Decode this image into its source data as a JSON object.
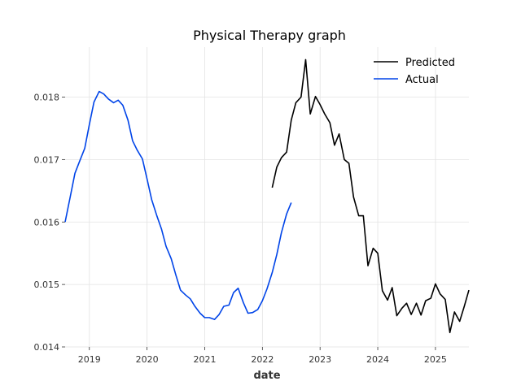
{
  "chart_data": {
    "type": "line",
    "title": "Physical Therapy graph",
    "xlabel": "date",
    "ylabel": "",
    "xlim": [
      2018.58,
      2025.58
    ],
    "ylim": [
      0.014,
      0.0188
    ],
    "x_ticks": [
      2019,
      2020,
      2021,
      2022,
      2023,
      2024,
      2025
    ],
    "x_tick_labels": [
      "2019",
      "2020",
      "2021",
      "2022",
      "2023",
      "2024",
      "2025"
    ],
    "y_ticks": [
      0.014,
      0.015,
      0.016,
      0.017,
      0.018
    ],
    "y_tick_labels": [
      "0.014",
      "0.015",
      "0.016",
      "0.017",
      "0.018"
    ],
    "grid": true,
    "legend_position": "top-right",
    "series": [
      {
        "name": "Predicted",
        "color": "#000000",
        "x": [
          2022.17,
          2022.25,
          2022.33,
          2022.42,
          2022.5,
          2022.58,
          2022.67,
          2022.75,
          2022.83,
          2022.92,
          2023.0,
          2023.08,
          2023.17,
          2023.25,
          2023.33,
          2023.42,
          2023.5,
          2023.58,
          2023.67,
          2023.75,
          2023.83,
          2023.92,
          2024.0,
          2024.08,
          2024.17,
          2024.25,
          2024.33,
          2024.42,
          2024.5,
          2024.58,
          2024.67,
          2024.75,
          2024.83,
          2024.92,
          2025.0,
          2025.08,
          2025.17,
          2025.25,
          2025.33,
          2025.42,
          2025.5,
          2025.58
        ],
        "values": [
          0.01655,
          0.01688,
          0.01703,
          0.01712,
          0.01763,
          0.01791,
          0.018,
          0.0186,
          0.01773,
          0.01801,
          0.01788,
          0.01773,
          0.01759,
          0.01723,
          0.01741,
          0.017,
          0.01694,
          0.0164,
          0.0161,
          0.0161,
          0.0153,
          0.01558,
          0.0155,
          0.0149,
          0.01475,
          0.01495,
          0.0145,
          0.01462,
          0.0147,
          0.01452,
          0.0147,
          0.01451,
          0.01474,
          0.01478,
          0.01501,
          0.01485,
          0.01476,
          0.01423,
          0.01456,
          0.01441,
          0.01465,
          0.01491
        ]
      },
      {
        "name": "Actual",
        "color": "#0044e8",
        "x": [
          2018.58,
          2018.67,
          2018.75,
          2018.83,
          2018.92,
          2019.0,
          2019.08,
          2019.17,
          2019.25,
          2019.33,
          2019.42,
          2019.5,
          2019.58,
          2019.67,
          2019.75,
          2019.83,
          2019.92,
          2020.0,
          2020.08,
          2020.17,
          2020.25,
          2020.33,
          2020.42,
          2020.5,
          2020.58,
          2020.67,
          2020.75,
          2020.83,
          2020.92,
          2021.0,
          2021.08,
          2021.17,
          2021.25,
          2021.33,
          2021.42,
          2021.5,
          2021.58,
          2021.67,
          2021.75,
          2021.83,
          2021.92,
          2022.0,
          2022.08,
          2022.17,
          2022.25,
          2022.33,
          2022.42,
          2022.5
        ],
        "values": [
          0.016,
          0.01641,
          0.01678,
          0.01697,
          0.01718,
          0.01756,
          0.01792,
          0.01809,
          0.01805,
          0.01797,
          0.01791,
          0.01795,
          0.01787,
          0.01763,
          0.0173,
          0.01715,
          0.01701,
          0.01669,
          0.01636,
          0.0161,
          0.01589,
          0.01561,
          0.01541,
          0.01515,
          0.01491,
          0.01483,
          0.01477,
          0.01465,
          0.01454,
          0.01447,
          0.01447,
          0.01444,
          0.01452,
          0.01465,
          0.01467,
          0.01487,
          0.01494,
          0.01471,
          0.01454,
          0.01455,
          0.0146,
          0.01474,
          0.01493,
          0.01519,
          0.01548,
          0.01583,
          0.01613,
          0.01631
        ]
      }
    ]
  }
}
